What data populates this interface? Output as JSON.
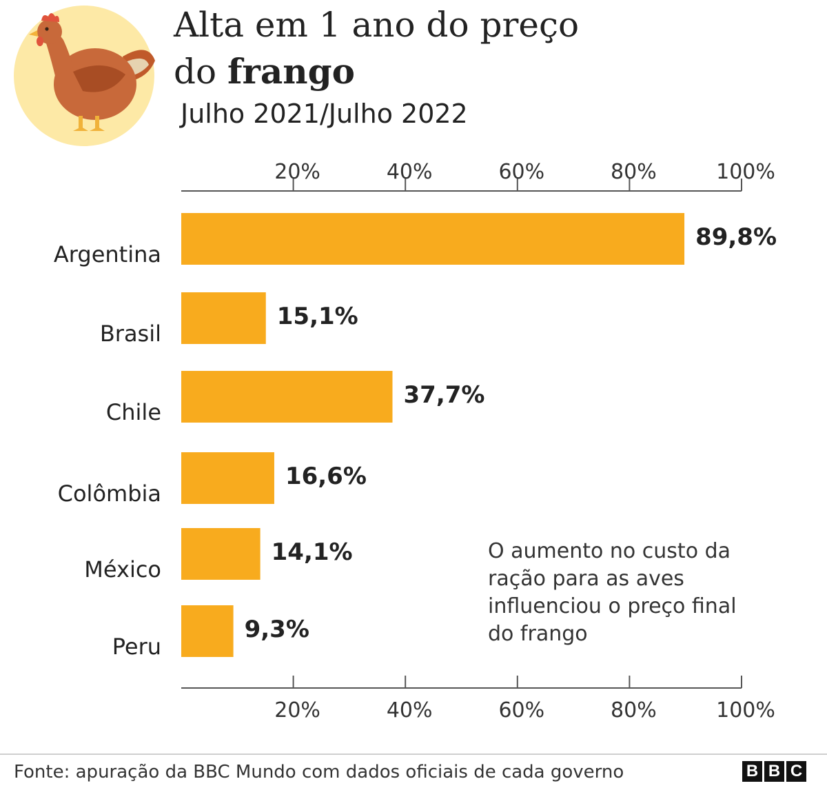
{
  "header": {
    "title_line1": "Alta em 1 ano do preço",
    "title_line2_prefix": "do ",
    "title_line2_bold": "frango",
    "subtitle": "Julho 2021/Julho 2022",
    "illustration": "chicken-icon"
  },
  "chart_data": {
    "type": "bar",
    "orientation": "horizontal",
    "title": "Alta em 1 ano do preço do frango",
    "subtitle": "Julho 2021/Julho 2022",
    "categories": [
      "Argentina",
      "Brasil",
      "Chile",
      "Colômbia",
      "México",
      "Peru"
    ],
    "values": [
      89.8,
      15.1,
      37.7,
      16.6,
      14.1,
      9.3
    ],
    "value_labels": [
      "89,8%",
      "15,1%",
      "37,7%",
      "16,6%",
      "14,1%",
      "9,3%"
    ],
    "xlim": [
      0,
      100
    ],
    "xticks": [
      20,
      40,
      60,
      80,
      100
    ],
    "xtick_labels": [
      "20%",
      "40%",
      "60%",
      "80%",
      "100%"
    ],
    "grid": false,
    "axes": "top-and-bottom",
    "bar_color": "#f8ab1e",
    "annotation": "O aumento no custo da ração para as aves influenciou o preço final do frango"
  },
  "footer": {
    "source": "Fonte: apuração da BBC Mundo com dados oficiais de cada governo",
    "logo_letters": [
      "B",
      "B",
      "C"
    ]
  },
  "colors": {
    "bar": "#f8ab1e",
    "axis": "#555555",
    "illustration_bg": "#fde9a6"
  }
}
